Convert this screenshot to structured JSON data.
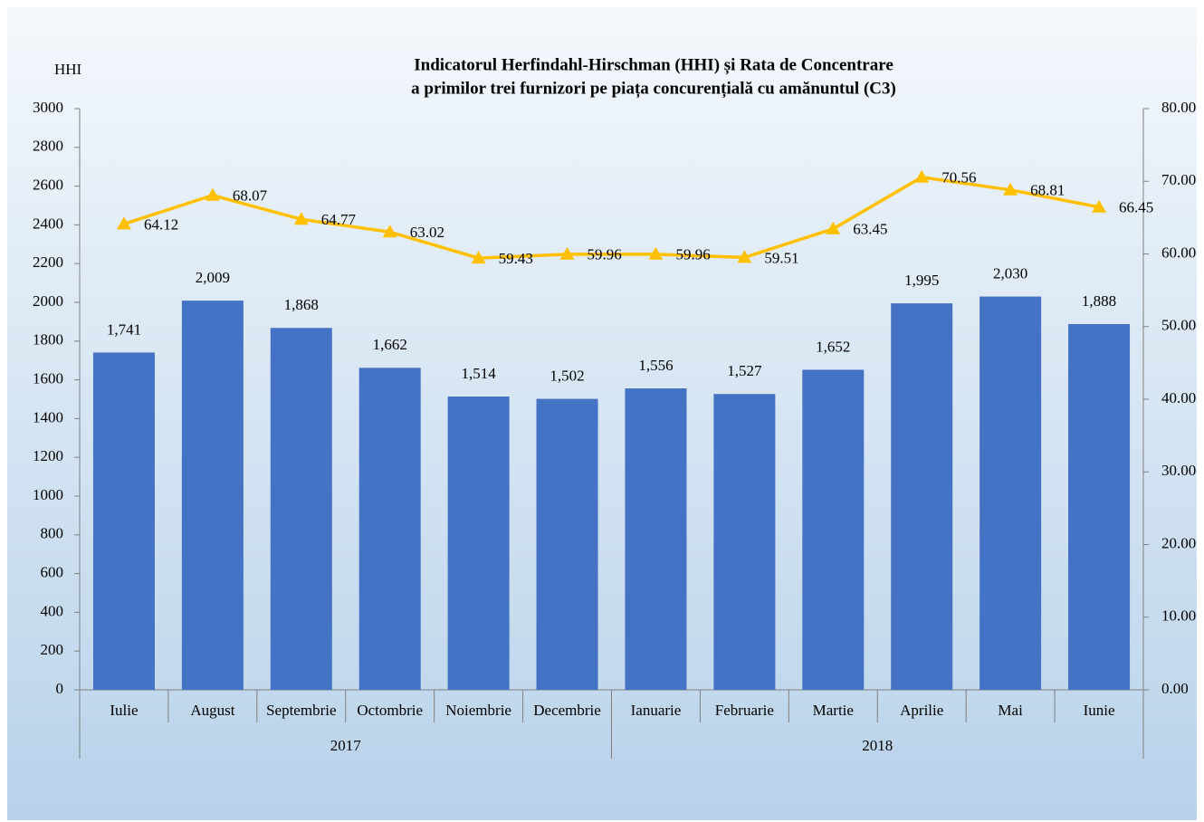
{
  "chart_data": {
    "type": "bar",
    "title": "Indicatorul Herfindahl-Hirschman (HHI) și Rata de Concentrare",
    "subtitle": "a primilor trei furnizori pe piața concurențială cu amănuntul (C3)",
    "y_label": "HHI",
    "category_groups": [
      {
        "name": "2017",
        "categories": [
          "Iulie",
          "August",
          "Septembrie",
          "Octombrie",
          "Noiembrie",
          "Decembrie"
        ]
      },
      {
        "name": "2018",
        "categories": [
          "Ianuarie",
          "Februarie",
          "Martie",
          "Aprilie",
          "Mai",
          "Iunie"
        ]
      }
    ],
    "series": [
      {
        "type": "bar",
        "color": "#4472c4",
        "values": [
          1741,
          2009,
          1868,
          1662,
          1514,
          1502,
          1556,
          1527,
          1652,
          1995,
          2030,
          1888
        ],
        "value_labels": [
          "1,741",
          "2,009",
          "1,868",
          "1,662",
          "1,514",
          "1,502",
          "1,556",
          "1,527",
          "1,652",
          "1,995",
          "2,030",
          "1,888"
        ]
      },
      {
        "type": "line",
        "axis": "y2",
        "color": "#ffc000",
        "values": [
          64.12,
          68.07,
          64.77,
          63.02,
          59.43,
          59.96,
          59.96,
          59.51,
          63.45,
          70.56,
          68.81,
          66.45
        ]
      }
    ],
    "ylim": [
      0,
      3000
    ],
    "yticks": [
      0,
      200,
      400,
      600,
      800,
      1000,
      1200,
      1400,
      1600,
      1800,
      2000,
      2200,
      2400,
      2600,
      2800,
      3000
    ],
    "y2lim": [
      0,
      80
    ],
    "y2ticks": [
      {
        "value": 0,
        "label": "0.00"
      },
      {
        "value": 10,
        "label": "10.00"
      },
      {
        "value": 20,
        "label": "20.00"
      },
      {
        "value": 30,
        "label": "30.00"
      },
      {
        "value": 40,
        "label": "40.00"
      },
      {
        "value": 50,
        "label": "50.00"
      },
      {
        "value": 60,
        "label": "60.00"
      },
      {
        "value": 70,
        "label": "70.00"
      },
      {
        "value": 80,
        "label": "80.00"
      }
    ]
  }
}
